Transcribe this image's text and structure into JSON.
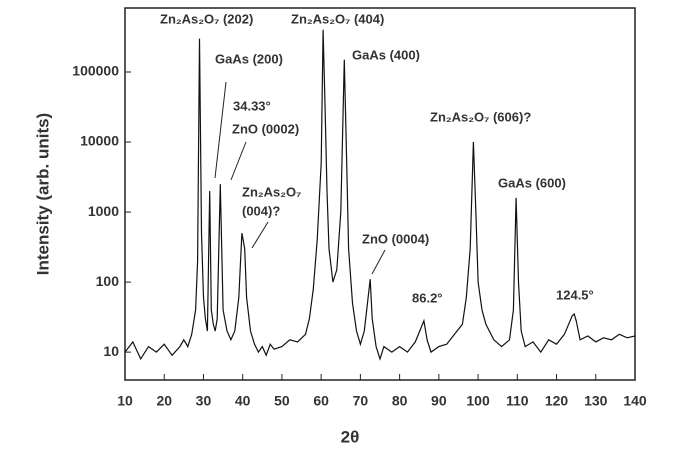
{
  "chart_data": {
    "type": "line",
    "xlabel": "2θ",
    "ylabel": "Intensity (arb. units)",
    "log_y": true,
    "color": "#111111",
    "xlim": [
      10,
      140
    ],
    "xticks": [
      10,
      20,
      30,
      40,
      50,
      60,
      70,
      80,
      90,
      100,
      110,
      120,
      130,
      140
    ],
    "ylim": [
      4,
      820000
    ],
    "yticks": [
      10,
      100,
      1000,
      10000,
      100000
    ],
    "x": [
      10,
      12,
      14,
      16,
      18,
      20,
      22,
      24,
      25,
      26,
      27,
      28,
      28.5,
      29,
      29.5,
      30,
      30.5,
      31,
      31.6,
      32,
      32.5,
      33,
      33.5,
      34.3,
      35,
      36,
      37,
      38,
      39,
      39.8,
      40.5,
      41,
      42,
      43,
      44,
      45,
      46,
      47,
      48,
      50,
      52,
      54,
      56,
      57,
      58,
      59,
      60,
      60.5,
      61,
      61.5,
      62,
      63,
      64,
      65,
      65.9,
      66.5,
      67,
      68,
      69,
      70,
      71,
      72.5,
      73,
      74,
      75,
      76,
      78,
      80,
      82,
      84,
      86.2,
      87,
      88,
      90,
      92,
      94,
      96,
      97,
      98,
      98.8,
      99.5,
      100,
      101,
      102,
      104,
      106,
      108,
      109,
      109.7,
      110.3,
      111,
      112,
      114,
      116,
      118,
      120,
      122,
      124,
      124.5,
      125,
      126,
      128,
      130,
      132,
      134,
      136,
      138,
      140
    ],
    "values": [
      10,
      14,
      8,
      12,
      10,
      13,
      9,
      12,
      15,
      12,
      18,
      40,
      200,
      300000,
      500,
      60,
      30,
      20,
      2000,
      40,
      25,
      20,
      30,
      2500,
      40,
      20,
      15,
      20,
      60,
      500,
      300,
      60,
      20,
      13,
      10,
      12,
      9,
      13,
      11,
      12,
      15,
      14,
      18,
      30,
      80,
      400,
      5000,
      400000,
      30000,
      2000,
      300,
      100,
      150,
      1000,
      150000,
      5000,
      300,
      50,
      20,
      13,
      20,
      110,
      30,
      12,
      8,
      12,
      10,
      12,
      10,
      14,
      28,
      15,
      10,
      12,
      13,
      18,
      25,
      60,
      300,
      10000,
      800,
      100,
      40,
      25,
      15,
      12,
      15,
      40,
      1600,
      100,
      20,
      12,
      14,
      10,
      15,
      13,
      18,
      33,
      35,
      28,
      15,
      17,
      14,
      16,
      15,
      18,
      16,
      17
    ],
    "annotations": [
      "Zn₂As₂O₇ (202)",
      "GaAs (200)",
      "34.33°",
      "ZnO (0002)",
      "Zn₂As₂O₇",
      "(004)?",
      "Zn₂As₂O₇ (404)",
      "GaAs (400)",
      "ZnO (0004)",
      "86.2°",
      "Zn₂As₂O₇ (606)?",
      "GaAs (600)",
      "124.5°"
    ]
  }
}
